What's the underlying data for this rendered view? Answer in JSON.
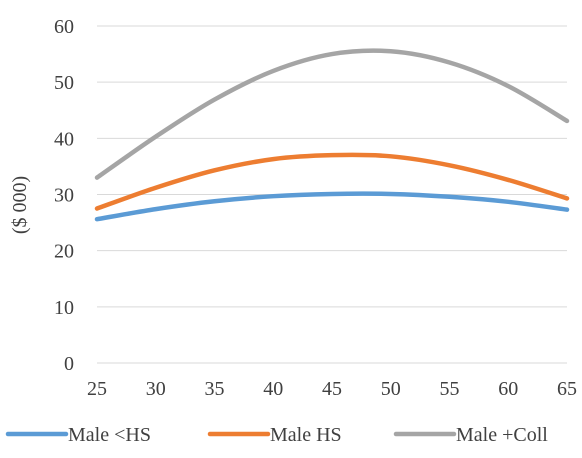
{
  "chart_data": {
    "type": "line",
    "title": "",
    "xlabel": "",
    "ylabel": "($ 000)",
    "xlim": [
      25,
      65
    ],
    "ylim": [
      0,
      60
    ],
    "x_ticks": [
      "25",
      "30",
      "35",
      "40",
      "45",
      "50",
      "55",
      "60",
      "65"
    ],
    "y_ticks": [
      "0",
      "10",
      "20",
      "30",
      "40",
      "50",
      "60"
    ],
    "grid": "horizontal",
    "legend_position": "bottom",
    "x": [
      25,
      30,
      35,
      40,
      45,
      50,
      55,
      60,
      65
    ],
    "series": [
      {
        "name": "Male <HS",
        "color": "#5B9BD5",
        "values": [
          25.6,
          27.4,
          28.8,
          29.7,
          30.1,
          30.1,
          29.6,
          28.7,
          27.3
        ]
      },
      {
        "name": "Male HS",
        "color": "#ED7D31",
        "values": [
          27.5,
          31.2,
          34.3,
          36.3,
          37.0,
          36.8,
          35.2,
          32.6,
          29.3
        ]
      },
      {
        "name": "Male +Coll",
        "color": "#A5A5A5",
        "values": [
          33.0,
          40.3,
          46.9,
          52.0,
          55.0,
          55.5,
          53.5,
          49.3,
          43.1
        ]
      }
    ]
  }
}
